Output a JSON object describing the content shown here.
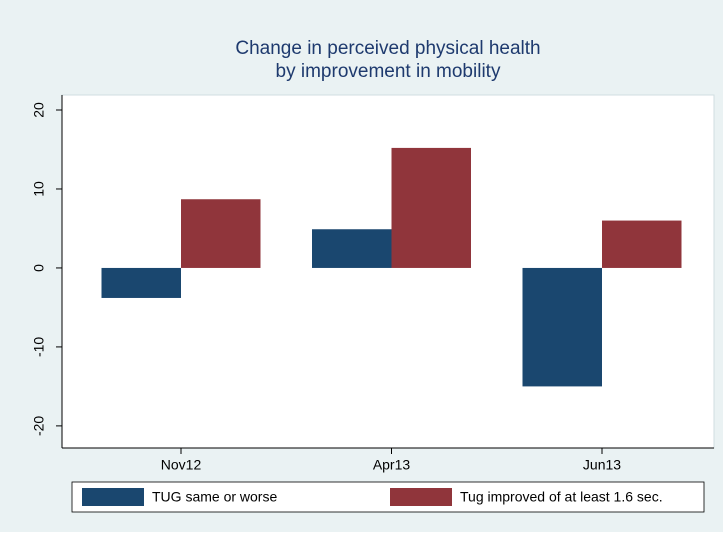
{
  "chart_data": {
    "type": "bar",
    "title": [
      "Change in perceived physical health",
      "by improvement in mobility"
    ],
    "categories": [
      "Nov12",
      "Apr13",
      "Jun13"
    ],
    "series": [
      {
        "name": "TUG same or worse",
        "color": "#1a476f",
        "values": [
          -3.8,
          4.9,
          -15.0
        ]
      },
      {
        "name": "Tug improved of at least 1.6 sec.",
        "color": "#90353b",
        "values": [
          8.7,
          15.2,
          6.0
        ]
      }
    ],
    "ylim": [
      -22.8,
      21.9
    ],
    "yticks": [
      -20,
      -10,
      0,
      10,
      20
    ],
    "grid": false
  }
}
